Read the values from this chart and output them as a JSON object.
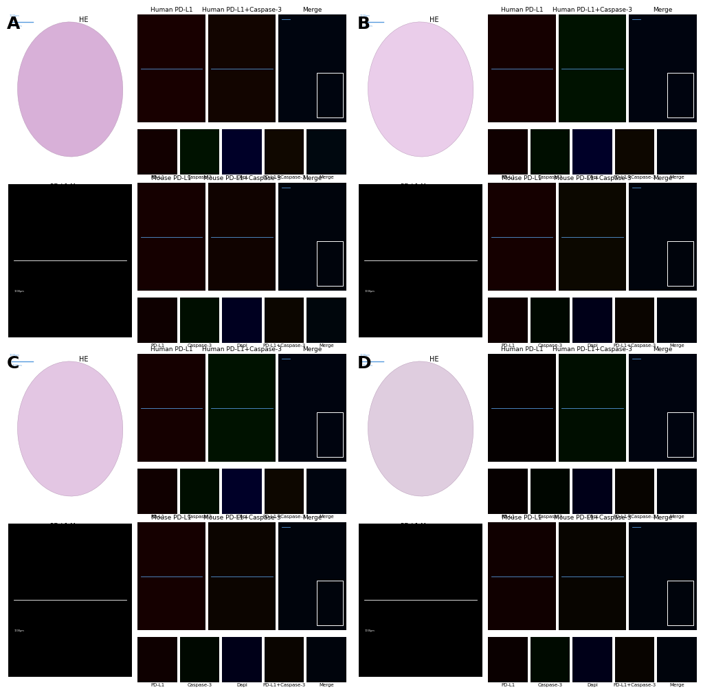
{
  "background_color": "#ffffff",
  "panel_label_fontsize": 18,
  "panel_label_color": "#000000",
  "title_fontsize": 6.5,
  "image_label_fontsize": 5.0,
  "he_label": "HE",
  "pdl1merge_label": "PD-L1 Merge",
  "he_label_fontsize": 7,
  "pdl1merge_label_fontsize": 6.5,
  "scalebar_color": "#5599dd",
  "white_box_color": "#ffffff",
  "panels": {
    "A": {
      "he_bg": "#ffffff",
      "he_tissue_color": "#d4a8d4",
      "pdl1merge_bg": "#000000",
      "top_row_images": [
        "#180000",
        "#120500",
        "#00050f"
      ],
      "top_inset_colors": [
        "#120000",
        "#001200",
        "#000028",
        "#100800",
        "#00080f"
      ],
      "bottom_row_images": [
        "#150000",
        "#100300",
        "#00040c"
      ],
      "bottom_inset_colors": [
        "#0e0000",
        "#000e00",
        "#000020",
        "#0c0600",
        "#00060c"
      ]
    },
    "B": {
      "he_bg": "#ffffff",
      "he_tissue_color": "#e8c8e8",
      "pdl1merge_bg": "#000000",
      "top_row_images": [
        "#150000",
        "#001200",
        "#00040f"
      ],
      "top_inset_colors": [
        "#100000",
        "#000e00",
        "#000028",
        "#0d0700",
        "#00050f"
      ],
      "bottom_row_images": [
        "#150000",
        "#0c0800",
        "#00040c"
      ],
      "bottom_inset_colors": [
        "#0e0000",
        "#000800",
        "#000018",
        "#0a0500",
        "#00040c"
      ]
    },
    "C": {
      "he_bg": "#ffffff",
      "he_tissue_color": "#e0c0e0",
      "pdl1merge_bg": "#000000",
      "top_row_images": [
        "#150000",
        "#001200",
        "#00040f"
      ],
      "top_inset_colors": [
        "#100000",
        "#000e00",
        "#000028",
        "#0d0700",
        "#00050f"
      ],
      "bottom_row_images": [
        "#150000",
        "#0c0500",
        "#00040c"
      ],
      "bottom_inset_colors": [
        "#0e0000",
        "#000800",
        "#000018",
        "#0a0500",
        "#00040c"
      ]
    },
    "D": {
      "he_bg": "#ffffff",
      "he_tissue_color": "#dcc8dc",
      "pdl1merge_bg": "#000000",
      "top_row_images": [
        "#050000",
        "#000e00",
        "#00040f"
      ],
      "top_inset_colors": [
        "#060000",
        "#000600",
        "#000018",
        "#070400",
        "#00040c"
      ],
      "bottom_row_images": [
        "#100000",
        "#080500",
        "#00040c"
      ],
      "bottom_inset_colors": [
        "#0a0000",
        "#000a00",
        "#000018",
        "#080400",
        "#00040c"
      ]
    }
  },
  "top_row_titles": [
    "Human PD-L1",
    "Human PD-L1+Caspase-3",
    "Merge"
  ],
  "bottom_row_titles": [
    "Mouse PD-L1",
    "Mouse PD-L1+Caspase-3",
    "Merge"
  ],
  "inset_labels": [
    "PD-L1",
    "Caspase-3",
    "Dapi",
    "PD-L1+Caspase-3",
    "Merge"
  ]
}
